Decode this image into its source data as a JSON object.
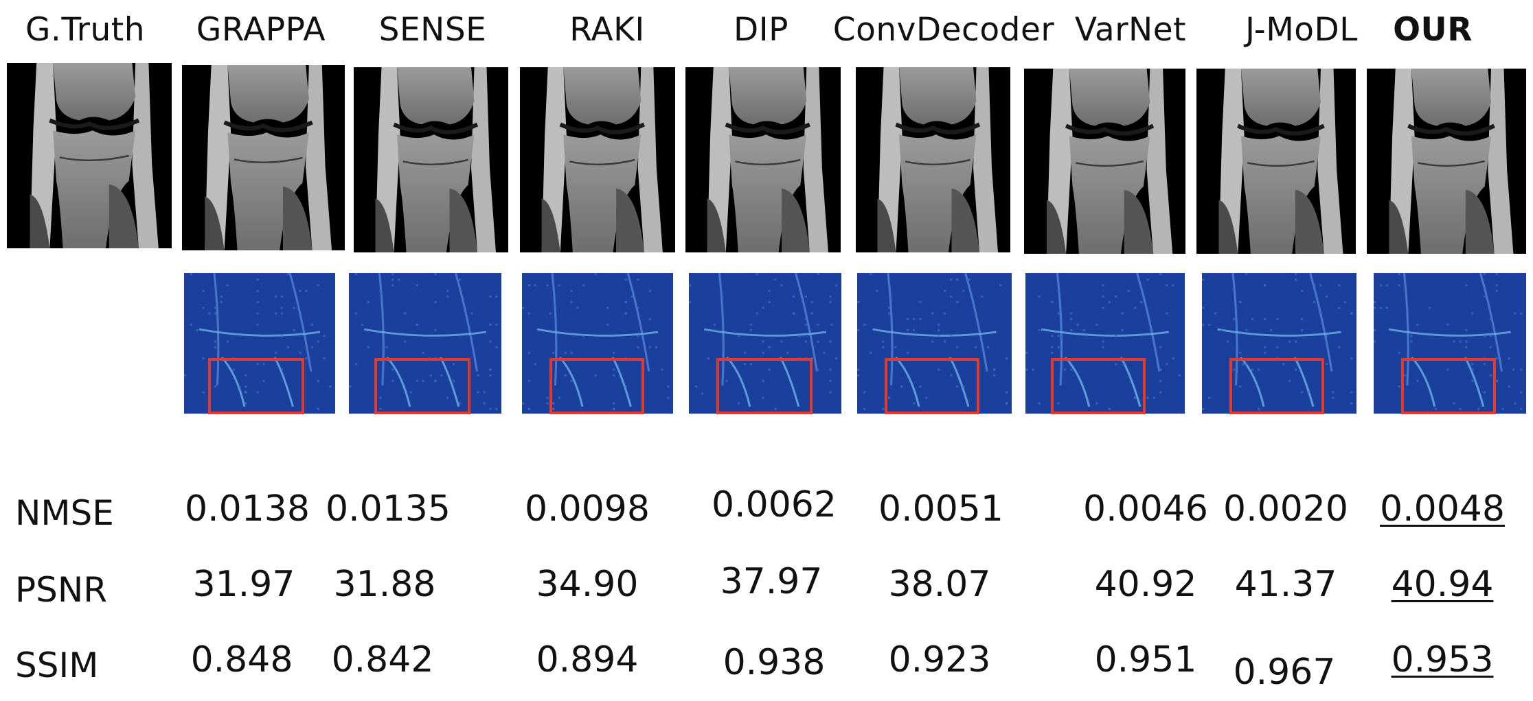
{
  "methods": [
    "G.Truth",
    "GRAPPA",
    "SENSE",
    "RAKI",
    "DIP",
    "ConvDecoder",
    "VarNet",
    "J-MoDL",
    "OUR"
  ],
  "metrics": [
    {
      "name": "NMSE",
      "values": [
        "0.0138",
        "0.0135",
        "0.0098",
        "0.0062",
        "0.0051",
        "0.0046",
        "0.0020",
        "0.0048"
      ]
    },
    {
      "name": "PSNR",
      "values": [
        "31.97",
        "31.88",
        "34.90",
        "37.97",
        "38.07",
        "40.92",
        "41.37",
        "40.94"
      ]
    },
    {
      "name": "SSIM",
      "values": [
        "0.848",
        "0.842",
        "0.894",
        "0.938",
        "0.923",
        "0.951",
        "0.967",
        "0.953"
      ]
    }
  ],
  "colors": {
    "error_map": "#1b3f9c",
    "highlight_box": "#e43a2c"
  }
}
